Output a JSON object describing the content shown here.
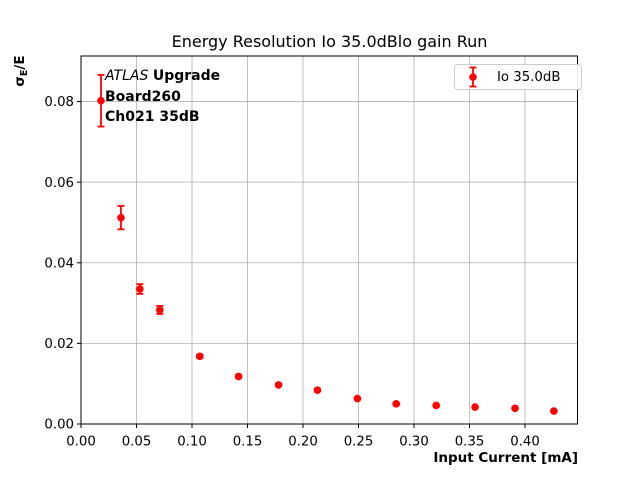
{
  "chart_data": {
    "type": "scatter",
    "title": "Energy Resolution Io 35.0dBlo gain Run",
    "xlabel": "Input Current [mA]",
    "ylabel": "σE/E",
    "ylabel_parts": {
      "base": "σ",
      "sub": "E",
      "rest": "/E"
    },
    "grid": true,
    "legend_position": "upper right",
    "legend": {
      "entries": [
        {
          "label": "Io 35.0dB"
        }
      ]
    },
    "annotation_lines": [
      {
        "italic": "ATLAS ",
        "bold": "Upgrade"
      },
      {
        "bold": "Board260"
      },
      {
        "bold": "Ch021 35dB"
      }
    ],
    "xlim": [
      0,
      0.4473
    ],
    "ylim": [
      0,
      0.0913
    ],
    "xticks": [
      0,
      0.05,
      0.1,
      0.15,
      0.2,
      0.25,
      0.3,
      0.35,
      0.4
    ],
    "xtick_labels": [
      "0.00",
      "0.05",
      "0.10",
      "0.15",
      "0.20",
      "0.25",
      "0.30",
      "0.35",
      "0.40"
    ],
    "yticks": [
      0,
      0.02,
      0.04,
      0.06,
      0.08
    ],
    "ytick_labels": [
      "0.00",
      "0.02",
      "0.04",
      "0.06",
      "0.08"
    ],
    "series": [
      {
        "name": "Io 35.0dB",
        "marker": "circle-with-errorbars",
        "color": "#ff0000",
        "x": [
          0.018,
          0.036,
          0.053,
          0.071,
          0.107,
          0.142,
          0.178,
          0.213,
          0.249,
          0.284,
          0.32,
          0.355,
          0.391,
          0.426
        ],
        "y": [
          0.0802,
          0.0512,
          0.0335,
          0.0283,
          0.0168,
          0.0118,
          0.0097,
          0.0084,
          0.0063,
          0.005,
          0.0046,
          0.0042,
          0.0039,
          0.0032
        ],
        "yerr": [
          0.0064,
          0.0029,
          0.0012,
          0.001,
          0.0004,
          0.0003,
          0.0003,
          0.0003,
          0.0002,
          0.0002,
          0.0002,
          0.0002,
          0.0002,
          0.0002
        ]
      }
    ],
    "colors": {
      "series": "#ff0000",
      "grid": "#b0b0b0",
      "spine": "#000000",
      "text": "#000000",
      "legend_border": "#cccccc",
      "background": "#ffffff"
    }
  }
}
